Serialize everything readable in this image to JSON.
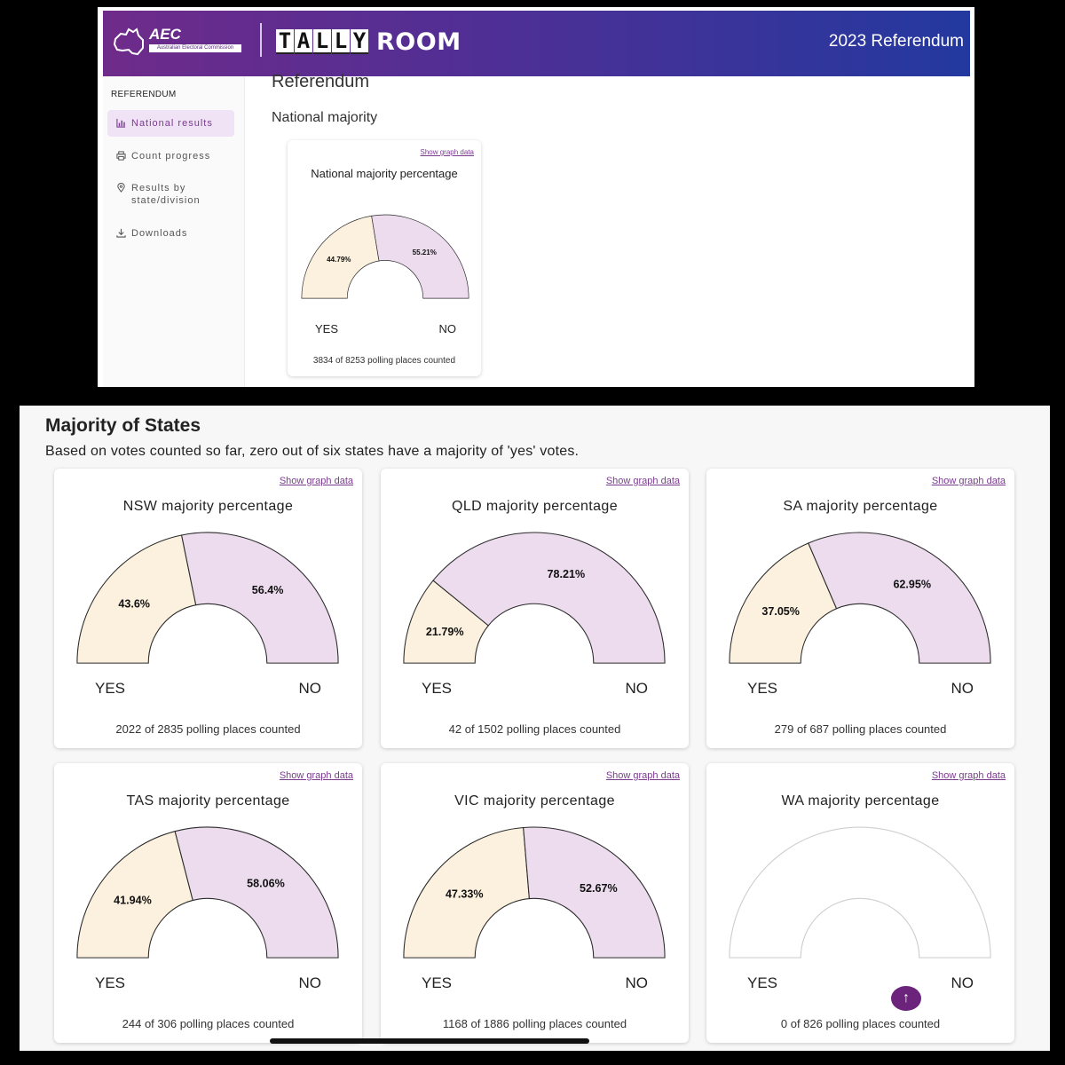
{
  "header": {
    "org_short": "AEC",
    "org_full": "Australian Electoral Commission",
    "app_tiles": [
      "T",
      "A",
      "L",
      "L",
      "Y"
    ],
    "app_suffix": "ROOM",
    "event": "2023 Referendum"
  },
  "sidebar": {
    "title": "REFERENDUM",
    "items": [
      {
        "label": "National results",
        "icon": "bar-chart-icon",
        "active": true
      },
      {
        "label": "Count progress",
        "icon": "printer-icon",
        "active": false
      },
      {
        "label": "Results by state/division",
        "icon": "map-pin-icon",
        "active": false
      },
      {
        "label": "Downloads",
        "icon": "download-icon",
        "active": false
      }
    ]
  },
  "main": {
    "title": "Referendum",
    "subtitle": "National majority"
  },
  "states_section": {
    "title": "Majority of States",
    "description": "Based on votes counted so far, zero out of six states have a majority of 'yes' votes."
  },
  "common": {
    "show_graph_data": "Show graph data",
    "yes": "YES",
    "no": "NO"
  },
  "colors": {
    "yes_fill": "#fcf1de",
    "no_fill": "#ecdcee",
    "stroke": "#2b2b2b",
    "empty_stroke": "#cfcfcf",
    "accent": "#6b237c"
  },
  "chart_data": [
    {
      "id": "national",
      "type": "pie",
      "title": "National majority percentage",
      "categories": [
        "YES",
        "NO"
      ],
      "values": [
        44.79,
        55.21
      ],
      "labels": [
        "44.79%",
        "55.21%"
      ],
      "footer": "3834 of 8253 polling places counted"
    },
    {
      "id": "nsw",
      "type": "pie",
      "title": "NSW majority percentage",
      "categories": [
        "YES",
        "NO"
      ],
      "values": [
        43.6,
        56.4
      ],
      "labels": [
        "43.6%",
        "56.4%"
      ],
      "footer": "2022 of 2835 polling places counted"
    },
    {
      "id": "qld",
      "type": "pie",
      "title": "QLD majority percentage",
      "categories": [
        "YES",
        "NO"
      ],
      "values": [
        21.79,
        78.21
      ],
      "labels": [
        "21.79%",
        "78.21%"
      ],
      "footer": "42 of 1502 polling places counted"
    },
    {
      "id": "sa",
      "type": "pie",
      "title": "SA majority percentage",
      "categories": [
        "YES",
        "NO"
      ],
      "values": [
        37.05,
        62.95
      ],
      "labels": [
        "37.05%",
        "62.95%"
      ],
      "footer": "279 of 687 polling places counted"
    },
    {
      "id": "tas",
      "type": "pie",
      "title": "TAS majority percentage",
      "categories": [
        "YES",
        "NO"
      ],
      "values": [
        41.94,
        58.06
      ],
      "labels": [
        "41.94%",
        "58.06%"
      ],
      "footer": "244 of 306 polling places counted"
    },
    {
      "id": "vic",
      "type": "pie",
      "title": "VIC majority percentage",
      "categories": [
        "YES",
        "NO"
      ],
      "values": [
        47.33,
        52.67
      ],
      "labels": [
        "47.33%",
        "52.67%"
      ],
      "footer": "1168 of 1886 polling places counted"
    },
    {
      "id": "wa",
      "type": "pie",
      "title": "WA majority percentage",
      "categories": [
        "YES",
        "NO"
      ],
      "values": [],
      "labels": [],
      "footer": "0 of 826 polling places counted"
    }
  ]
}
